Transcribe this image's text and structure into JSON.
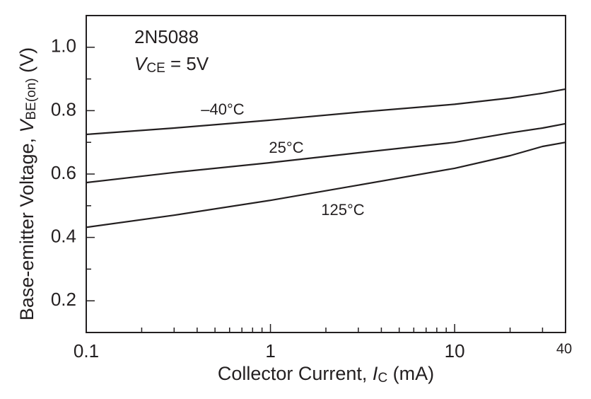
{
  "chart_data": {
    "type": "line",
    "annotation": {
      "device": "2N5088",
      "symbol": "V",
      "subscript": "CE",
      "rest": " = 5V"
    },
    "x_label": {
      "text": "Collector Current, ",
      "symbol": "I",
      "subscript": "C",
      "unit": " (mA)"
    },
    "y_label": {
      "text": "Base-emitter Voltage, ",
      "symbol": "V",
      "subscript": "BE(on)",
      "unit": " (V)"
    },
    "x": [
      0.1,
      0.3,
      1,
      3,
      10,
      20,
      30,
      40
    ],
    "series": [
      {
        "name": "–40°C",
        "color": "#231f20",
        "values": [
          0.725,
          0.745,
          0.77,
          0.795,
          0.82,
          0.84,
          0.855,
          0.868
        ]
      },
      {
        "name": "25°C",
        "color": "#231f20",
        "values": [
          0.573,
          0.605,
          0.636,
          0.667,
          0.7,
          0.73,
          0.745,
          0.759
        ]
      },
      {
        "name": "125°C",
        "color": "#231f20",
        "values": [
          0.432,
          0.47,
          0.517,
          0.565,
          0.618,
          0.658,
          0.687,
          0.7
        ]
      }
    ],
    "x_log": true,
    "xlim": [
      0.1,
      40
    ],
    "xticks": [
      0.1,
      1,
      10,
      40
    ],
    "x_minor_ticks": [
      0.2,
      0.3,
      0.4,
      0.5,
      0.6,
      0.7,
      0.8,
      0.9,
      2,
      3,
      4,
      5,
      6,
      7,
      8,
      9,
      20,
      30
    ],
    "ylim": [
      0.1,
      1.1
    ],
    "yticks": [
      0.2,
      0.4,
      0.6,
      0.8,
      {
        "value": 1,
        "label": "1.0"
      }
    ],
    "y_minor_ticks": [
      0.3,
      0.5,
      0.7,
      0.9
    ],
    "grid": false
  }
}
